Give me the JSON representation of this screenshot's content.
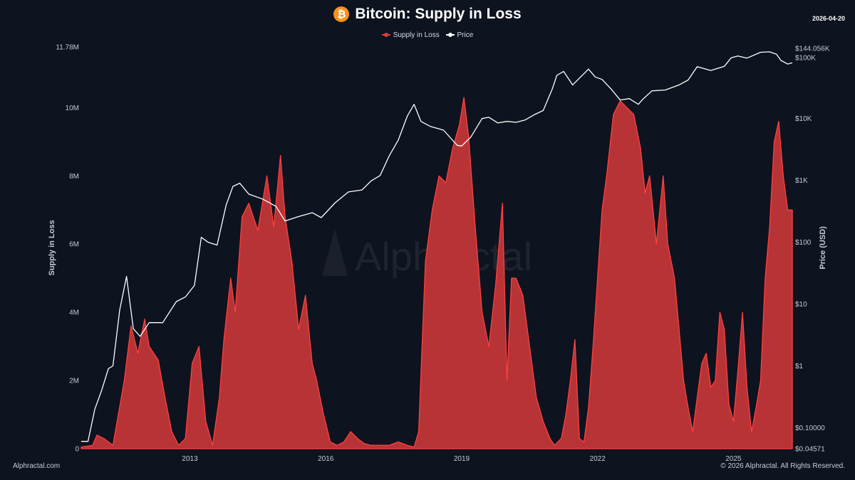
{
  "header": {
    "icon": "bitcoin-icon",
    "title": "Bitcoin: Supply in Loss",
    "date": "2026-04-20"
  },
  "legend": [
    {
      "label": "Supply in Loss",
      "color": "#e23b3b"
    },
    {
      "label": "Price",
      "color": "#ffffff"
    }
  ],
  "watermark": "Alphractal",
  "footer": {
    "left": "Alphractal.com",
    "right": "© 2026 Alphractal. All Rights Reserved."
  },
  "chart_data": {
    "type": "area",
    "title": "Bitcoin: Supply in Loss",
    "xlabel": "",
    "ylabel": "Supply in Loss",
    "y2label": "Price (USD)",
    "xlim": [
      2010.6,
      2026.3
    ],
    "ylim": [
      0,
      11780000
    ],
    "y2scale": "log",
    "y2lim": [
      0.04571,
      144056
    ],
    "x_ticks": [
      2013,
      2016,
      2019,
      2022,
      2025
    ],
    "y_ticks": [
      {
        "value": 0,
        "label": "0"
      },
      {
        "value": 2000000,
        "label": "2M"
      },
      {
        "value": 4000000,
        "label": "4M"
      },
      {
        "value": 6000000,
        "label": "6M"
      },
      {
        "value": 8000000,
        "label": "8M"
      },
      {
        "value": 10000000,
        "label": "10M"
      },
      {
        "value": 11780000,
        "label": "11.78M"
      }
    ],
    "y2_ticks": [
      {
        "value": 0.04571,
        "label": "$0.04571"
      },
      {
        "value": 0.1,
        "label": "$0.10000"
      },
      {
        "value": 1,
        "label": "$1"
      },
      {
        "value": 10,
        "label": "$10"
      },
      {
        "value": 100,
        "label": "$100"
      },
      {
        "value": 1000,
        "label": "$1K"
      },
      {
        "value": 10000,
        "label": "$10K"
      },
      {
        "value": 100000,
        "label": "$100K"
      },
      {
        "value": 144056,
        "label": "$144.056K"
      }
    ],
    "series": [
      {
        "name": "Supply in Loss",
        "axis": "left",
        "color": "#e23b3b",
        "x": [
          2010.6,
          2010.85,
          2010.95,
          2011.1,
          2011.3,
          2011.55,
          2011.7,
          2011.85,
          2012.0,
          2012.1,
          2012.3,
          2012.45,
          2012.6,
          2012.75,
          2012.9,
          2013.05,
          2013.2,
          2013.35,
          2013.5,
          2013.65,
          2013.75,
          2013.9,
          2014.0,
          2014.15,
          2014.3,
          2014.5,
          2014.7,
          2014.85,
          2015.0,
          2015.1,
          2015.25,
          2015.4,
          2015.55,
          2015.7,
          2015.8,
          2015.95,
          2016.1,
          2016.25,
          2016.4,
          2016.55,
          2016.7,
          2016.85,
          2017.0,
          2017.2,
          2017.4,
          2017.6,
          2017.8,
          2017.95,
          2018.05,
          2018.2,
          2018.35,
          2018.5,
          2018.65,
          2018.8,
          2018.95,
          2019.05,
          2019.15,
          2019.3,
          2019.45,
          2019.6,
          2019.75,
          2019.9,
          2020.0,
          2020.1,
          2020.2,
          2020.35,
          2020.5,
          2020.65,
          2020.8,
          2020.95,
          2021.05,
          2021.2,
          2021.3,
          2021.4,
          2021.5,
          2021.6,
          2021.7,
          2021.8,
          2021.9,
          2022.0,
          2022.1,
          2022.2,
          2022.35,
          2022.5,
          2022.65,
          2022.8,
          2022.95,
          2023.05,
          2023.15,
          2023.3,
          2023.45,
          2023.55,
          2023.7,
          2023.8,
          2023.9,
          2024.0,
          2024.1,
          2024.2,
          2024.3,
          2024.4,
          2024.5,
          2024.6,
          2024.7,
          2024.8,
          2024.9,
          2025.0,
          2025.1,
          2025.2,
          2025.3,
          2025.4,
          2025.5,
          2025.6,
          2025.7,
          2025.8,
          2025.9,
          2026.0,
          2026.1,
          2026.2,
          2026.3
        ],
        "values": [
          50000,
          100000,
          400000,
          300000,
          100000,
          2000000,
          3600000,
          2800000,
          3800000,
          3000000,
          2600000,
          1500000,
          500000,
          100000,
          300000,
          2500000,
          3000000,
          800000,
          100000,
          1500000,
          3200000,
          5000000,
          4000000,
          6800000,
          7200000,
          6400000,
          8000000,
          6500000,
          8600000,
          6800000,
          5500000,
          3500000,
          4500000,
          2500000,
          2000000,
          1000000,
          200000,
          100000,
          200000,
          500000,
          300000,
          150000,
          100000,
          100000,
          100000,
          200000,
          100000,
          50000,
          500000,
          5500000,
          7000000,
          8000000,
          7800000,
          8800000,
          9500000,
          10300000,
          9200000,
          6500000,
          4000000,
          3000000,
          4800000,
          7200000,
          2000000,
          5000000,
          5000000,
          4500000,
          3000000,
          1500000,
          800000,
          300000,
          100000,
          300000,
          1000000,
          2000000,
          3200000,
          300000,
          200000,
          1200000,
          3000000,
          5000000,
          7000000,
          8000000,
          9800000,
          10200000,
          10000000,
          9800000,
          8800000,
          7500000,
          8000000,
          6000000,
          8000000,
          6000000,
          5000000,
          3500000,
          2000000,
          1200000,
          500000,
          1500000,
          2500000,
          2800000,
          1800000,
          2000000,
          4000000,
          3500000,
          1300000,
          800000,
          2300000,
          4000000,
          1800000,
          500000,
          1200000,
          2000000,
          5000000,
          6500000,
          9000000,
          9600000,
          8000000,
          7000000,
          7000000
        ]
      },
      {
        "name": "Price",
        "axis": "right",
        "color": "#ffffff",
        "x": [
          2010.6,
          2010.75,
          2010.9,
          2011.05,
          2011.2,
          2011.3,
          2011.45,
          2011.6,
          2011.75,
          2011.9,
          2012.1,
          2012.4,
          2012.7,
          2012.9,
          2013.1,
          2013.25,
          2013.4,
          2013.6,
          2013.8,
          2013.95,
          2014.1,
          2014.3,
          2014.6,
          2014.9,
          2015.1,
          2015.4,
          2015.7,
          2015.9,
          2016.2,
          2016.5,
          2016.8,
          2017.0,
          2017.2,
          2017.4,
          2017.6,
          2017.8,
          2017.95,
          2018.1,
          2018.3,
          2018.6,
          2018.9,
          2019.0,
          2019.2,
          2019.45,
          2019.6,
          2019.8,
          2020.0,
          2020.2,
          2020.4,
          2020.6,
          2020.8,
          2021.0,
          2021.1,
          2021.25,
          2021.45,
          2021.6,
          2021.8,
          2021.95,
          2022.1,
          2022.3,
          2022.5,
          2022.7,
          2022.9,
          2023.0,
          2023.2,
          2023.5,
          2023.8,
          2024.0,
          2024.2,
          2024.5,
          2024.8,
          2024.95,
          2025.1,
          2025.3,
          2025.6,
          2025.8,
          2025.95,
          2026.05,
          2026.2,
          2026.3
        ],
        "values": [
          0.06,
          0.06,
          0.2,
          0.4,
          0.9,
          1.0,
          8,
          28,
          4,
          3,
          5,
          5,
          11,
          13,
          20,
          120,
          100,
          90,
          400,
          800,
          900,
          600,
          500,
          380,
          220,
          260,
          300,
          250,
          430,
          650,
          700,
          980,
          1200,
          2500,
          4500,
          11000,
          17000,
          9000,
          7500,
          6500,
          3700,
          3600,
          5000,
          10000,
          10500,
          8500,
          9000,
          8700,
          9500,
          11500,
          13500,
          30000,
          50000,
          58000,
          35000,
          45000,
          63000,
          47000,
          43000,
          30000,
          20000,
          21000,
          17000,
          20500,
          28000,
          29000,
          35000,
          42000,
          69000,
          60000,
          70000,
          96000,
          103000,
          95000,
          118000,
          120000,
          110000,
          87000,
          76000,
          80000
        ]
      }
    ]
  }
}
